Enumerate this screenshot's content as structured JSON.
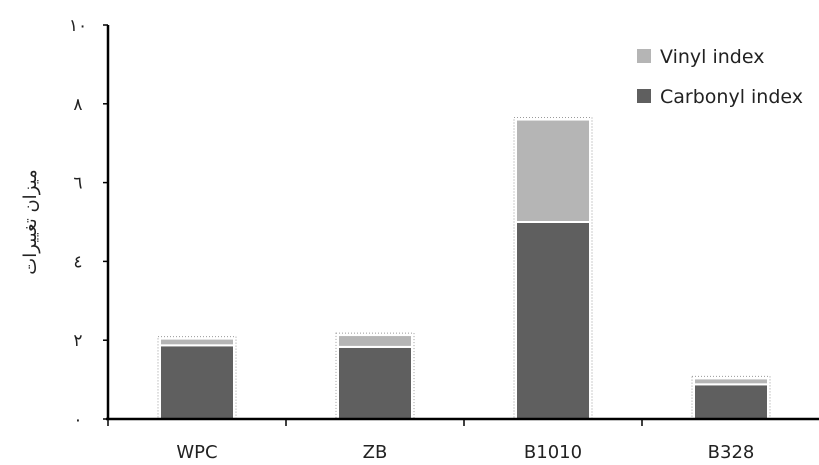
{
  "chart_data": {
    "type": "bar",
    "stacked": true,
    "title": "",
    "xlabel": "",
    "ylabel": "میزان تغییرات",
    "ylim": [
      0,
      10
    ],
    "yticks": [
      0,
      2,
      4,
      6,
      8,
      10
    ],
    "ytick_labels": [
      "۰",
      "۲",
      "٤",
      "٦",
      "۸",
      "۱۰"
    ],
    "grid": false,
    "legend_position": "top-right",
    "categories": [
      "WPC",
      "ZB",
      "B1010",
      "B328"
    ],
    "series": [
      {
        "name": "Carbonyl index",
        "color": "#5f5f5f",
        "values": [
          1.87,
          1.83,
          5.0,
          0.88
        ]
      },
      {
        "name": "Vinyl index",
        "color": "#b5b5b5",
        "values": [
          0.17,
          0.3,
          2.6,
          0.15
        ]
      }
    ]
  }
}
